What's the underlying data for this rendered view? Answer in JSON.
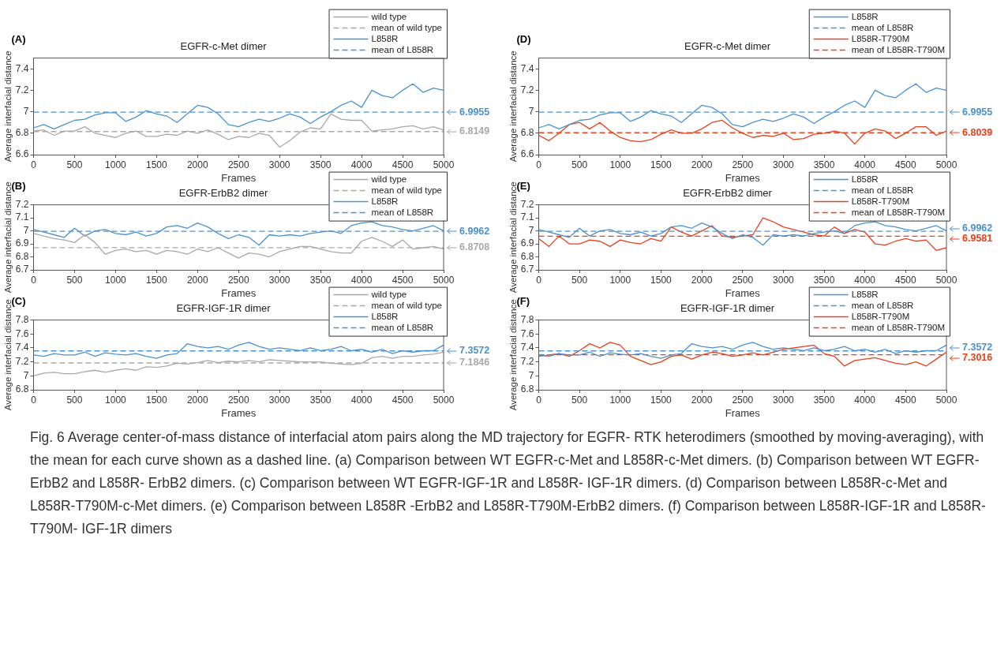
{
  "chart_data": [
    {
      "type": "line",
      "title": "EGFR-c-Met dimer",
      "xlabel": "Frames",
      "ylabel": "Average interfacial distance",
      "xlim": [
        0,
        5000
      ],
      "xticks": [
        0,
        500,
        1000,
        1500,
        2000,
        2500,
        3000,
        3500,
        4000,
        4500,
        5000
      ],
      "ylim": [
        6.6,
        7.5
      ],
      "yticks": [
        6.6,
        6.8,
        7,
        7.2,
        7.4
      ],
      "grid": false,
      "legend": "top right",
      "marker": "none",
      "x": [
        0,
        125,
        250,
        375,
        500,
        625,
        750,
        875,
        1000,
        1125,
        1250,
        1375,
        1500,
        1625,
        1750,
        1875,
        2000,
        2125,
        2250,
        2375,
        2500,
        2625,
        2750,
        2875,
        3000,
        3125,
        3250,
        3375,
        3500,
        3625,
        3750,
        3875,
        4000,
        4125,
        4250,
        4375,
        4500,
        4625,
        4750,
        4875,
        5000
      ],
      "series": [
        {
          "name": "wild type",
          "color": "#a9a9a9",
          "values": [
            6.82,
            6.83,
            6.78,
            6.82,
            6.82,
            6.86,
            6.8,
            6.78,
            6.76,
            6.8,
            6.82,
            6.77,
            6.77,
            6.79,
            6.78,
            6.82,
            6.8,
            6.83,
            6.79,
            6.74,
            6.77,
            6.76,
            6.8,
            6.78,
            6.67,
            6.73,
            6.81,
            6.85,
            6.84,
            6.98,
            6.93,
            6.92,
            6.92,
            6.82,
            6.83,
            6.84,
            6.86,
            6.87,
            6.84,
            6.86,
            6.83
          ]
        },
        {
          "name": "mean of wild type",
          "color": "#a9a9a9",
          "line_style": "dashed",
          "values": [
            6.8149,
            6.8149,
            6.8149,
            6.8149,
            6.8149,
            6.8149,
            6.8149,
            6.8149,
            6.8149,
            6.8149,
            6.8149,
            6.8149,
            6.8149,
            6.8149,
            6.8149,
            6.8149,
            6.8149,
            6.8149,
            6.8149,
            6.8149,
            6.8149,
            6.8149,
            6.8149,
            6.8149,
            6.8149,
            6.8149,
            6.8149,
            6.8149,
            6.8149,
            6.8149,
            6.8149,
            6.8149,
            6.8149,
            6.8149,
            6.8149,
            6.8149,
            6.8149,
            6.8149,
            6.8149,
            6.8149,
            6.8149
          ]
        },
        {
          "name": "L858R",
          "color": "#4a92d2",
          "values": [
            6.85,
            6.88,
            6.84,
            6.88,
            6.92,
            6.93,
            6.97,
            6.99,
            6.99,
            6.91,
            6.95,
            7.01,
            6.98,
            6.96,
            6.9,
            6.98,
            7.06,
            7.04,
            6.98,
            6.88,
            6.86,
            6.9,
            6.93,
            6.91,
            6.94,
            6.98,
            6.95,
            6.89,
            6.95,
            7,
            7.06,
            7.1,
            7.04,
            7.2,
            7.15,
            7.13,
            7.2,
            7.26,
            7.18,
            7.22,
            7.2
          ]
        },
        {
          "name": "mean of L858R",
          "color": "#4a92d2",
          "line_style": "dashed",
          "values": [
            6.9955,
            6.9955,
            6.9955,
            6.9955,
            6.9955,
            6.9955,
            6.9955,
            6.9955,
            6.9955,
            6.9955,
            6.9955,
            6.9955,
            6.9955,
            6.9955,
            6.9955,
            6.9955,
            6.9955,
            6.9955,
            6.9955,
            6.9955,
            6.9955,
            6.9955,
            6.9955,
            6.9955,
            6.9955,
            6.9955,
            6.9955,
            6.9955,
            6.9955,
            6.9955,
            6.9955,
            6.9955,
            6.9955,
            6.9955,
            6.9955,
            6.9955,
            6.9955,
            6.9955,
            6.9955,
            6.9955,
            6.9955
          ]
        }
      ],
      "annotations": [
        "(A)",
        "6.8149",
        "6.9955"
      ]
    },
    {
      "type": "line",
      "title": "EGFR-ErbB2 dimer",
      "xlabel": "Frames",
      "ylabel": "Average interfacial distance",
      "xlim": [
        0,
        5000
      ],
      "xticks": [
        0,
        500,
        1000,
        1500,
        2000,
        2500,
        3000,
        3500,
        4000,
        4500,
        5000
      ],
      "ylim": [
        6.7,
        7.2
      ],
      "yticks": [
        6.7,
        6.8,
        6.9,
        7,
        7.1,
        7.2
      ],
      "grid": false,
      "legend": "top right",
      "marker": "none",
      "x": [
        0,
        125,
        250,
        375,
        500,
        625,
        750,
        875,
        1000,
        1125,
        1250,
        1375,
        1500,
        1625,
        1750,
        1875,
        2000,
        2125,
        2250,
        2375,
        2500,
        2625,
        2750,
        2875,
        3000,
        3125,
        3250,
        3375,
        3500,
        3625,
        3750,
        3875,
        4000,
        4125,
        4250,
        4375,
        4500,
        4625,
        4750,
        4875,
        5000
      ],
      "series": [
        {
          "name": "wild type",
          "color": "#a9a9a9",
          "values": [
            6.98,
            6.96,
            6.94,
            6.93,
            6.91,
            6.97,
            6.91,
            6.82,
            6.85,
            6.86,
            6.84,
            6.85,
            6.82,
            6.85,
            6.84,
            6.82,
            6.86,
            6.84,
            6.87,
            6.83,
            6.79,
            6.83,
            6.82,
            6.8,
            6.84,
            6.86,
            6.88,
            6.88,
            6.86,
            6.84,
            6.83,
            6.83,
            6.92,
            6.95,
            6.92,
            6.88,
            6.93,
            6.86,
            6.87,
            6.88,
            6.86
          ]
        },
        {
          "name": "mean of wild type",
          "color": "#a9a9a9",
          "line_style": "dashed",
          "values": [
            6.8708,
            6.8708,
            6.8708,
            6.8708,
            6.8708,
            6.8708,
            6.8708,
            6.8708,
            6.8708,
            6.8708,
            6.8708,
            6.8708,
            6.8708,
            6.8708,
            6.8708,
            6.8708,
            6.8708,
            6.8708,
            6.8708,
            6.8708,
            6.8708,
            6.8708,
            6.8708,
            6.8708,
            6.8708,
            6.8708,
            6.8708,
            6.8708,
            6.8708,
            6.8708,
            6.8708,
            6.8708,
            6.8708,
            6.8708,
            6.8708,
            6.8708,
            6.8708,
            6.8708,
            6.8708,
            6.8708,
            6.8708
          ]
        },
        {
          "name": "L858R",
          "color": "#4a92d2",
          "values": [
            7.01,
            6.99,
            6.97,
            6.95,
            7.02,
            6.96,
            7,
            7.01,
            6.98,
            6.97,
            6.99,
            6.96,
            6.98,
            7.03,
            7.04,
            7.02,
            7.06,
            7.03,
            6.98,
            6.94,
            6.97,
            6.95,
            6.89,
            6.97,
            6.96,
            6.97,
            6.96,
            6.98,
            6.99,
            7,
            6.98,
            7.04,
            7.06,
            7.07,
            7.04,
            7.03,
            7.01,
            7,
            7.02,
            7.04,
            7
          ]
        },
        {
          "name": "mean of L858R",
          "color": "#4a92d2",
          "line_style": "dashed",
          "values": [
            6.9962,
            6.9962,
            6.9962,
            6.9962,
            6.9962,
            6.9962,
            6.9962,
            6.9962,
            6.9962,
            6.9962,
            6.9962,
            6.9962,
            6.9962,
            6.9962,
            6.9962,
            6.9962,
            6.9962,
            6.9962,
            6.9962,
            6.9962,
            6.9962,
            6.9962,
            6.9962,
            6.9962,
            6.9962,
            6.9962,
            6.9962,
            6.9962,
            6.9962,
            6.9962,
            6.9962,
            6.9962,
            6.9962,
            6.9962,
            6.9962,
            6.9962,
            6.9962,
            6.9962,
            6.9962,
            6.9962,
            6.9962
          ]
        }
      ],
      "annotations": [
        "(B)",
        "6.8708",
        "6.9962"
      ]
    },
    {
      "type": "line",
      "title": "EGFR-IGF-1R dimer",
      "xlabel": "Frames",
      "ylabel": "Average interfacial distance",
      "xlim": [
        0,
        5000
      ],
      "xticks": [
        0,
        500,
        1000,
        1500,
        2000,
        2500,
        3000,
        3500,
        4000,
        4500,
        5000
      ],
      "ylim": [
        6.8,
        7.8
      ],
      "yticks": [
        6.8,
        7,
        7.2,
        7.4,
        7.6,
        7.8
      ],
      "grid": false,
      "legend": "top right",
      "marker": "none",
      "x": [
        0,
        125,
        250,
        375,
        500,
        625,
        750,
        875,
        1000,
        1125,
        1250,
        1375,
        1500,
        1625,
        1750,
        1875,
        2000,
        2125,
        2250,
        2375,
        2500,
        2625,
        2750,
        2875,
        3000,
        3125,
        3250,
        3375,
        3500,
        3625,
        3750,
        3875,
        4000,
        4125,
        4250,
        4375,
        4500,
        4625,
        4750,
        4875,
        5000
      ],
      "series": [
        {
          "name": "wild type",
          "color": "#a9a9a9",
          "values": [
            7,
            7.04,
            7.05,
            7.03,
            7.03,
            7.06,
            7.08,
            7.05,
            7.08,
            7.1,
            7.08,
            7.13,
            7.12,
            7.14,
            7.18,
            7.17,
            7.19,
            7.22,
            7.19,
            7.21,
            7.2,
            7.22,
            7.2,
            7.23,
            7.22,
            7.21,
            7.2,
            7.2,
            7.2,
            7.18,
            7.17,
            7.16,
            7.18,
            7.26,
            7.28,
            7.25,
            7.28,
            7.28,
            7.3,
            7.31,
            7.34
          ]
        },
        {
          "name": "mean of wild type",
          "color": "#a9a9a9",
          "line_style": "dashed",
          "values": [
            7.1846,
            7.1846,
            7.1846,
            7.1846,
            7.1846,
            7.1846,
            7.1846,
            7.1846,
            7.1846,
            7.1846,
            7.1846,
            7.1846,
            7.1846,
            7.1846,
            7.1846,
            7.1846,
            7.1846,
            7.1846,
            7.1846,
            7.1846,
            7.1846,
            7.1846,
            7.1846,
            7.1846,
            7.1846,
            7.1846,
            7.1846,
            7.1846,
            7.1846,
            7.1846,
            7.1846,
            7.1846,
            7.1846,
            7.1846,
            7.1846,
            7.1846,
            7.1846,
            7.1846,
            7.1846,
            7.1846,
            7.1846
          ]
        },
        {
          "name": "L858R",
          "color": "#4a92d2",
          "values": [
            7.3,
            7.28,
            7.32,
            7.3,
            7.3,
            7.34,
            7.28,
            7.33,
            7.31,
            7.3,
            7.32,
            7.28,
            7.25,
            7.3,
            7.32,
            7.46,
            7.42,
            7.4,
            7.42,
            7.38,
            7.44,
            7.48,
            7.42,
            7.38,
            7.4,
            7.38,
            7.36,
            7.4,
            7.36,
            7.38,
            7.42,
            7.36,
            7.38,
            7.34,
            7.38,
            7.32,
            7.36,
            7.34,
            7.36,
            7.36,
            7.44
          ]
        },
        {
          "name": "mean of L858R",
          "color": "#4a92d2",
          "line_style": "dashed",
          "values": [
            7.3572,
            7.3572,
            7.3572,
            7.3572,
            7.3572,
            7.3572,
            7.3572,
            7.3572,
            7.3572,
            7.3572,
            7.3572,
            7.3572,
            7.3572,
            7.3572,
            7.3572,
            7.3572,
            7.3572,
            7.3572,
            7.3572,
            7.3572,
            7.3572,
            7.3572,
            7.3572,
            7.3572,
            7.3572,
            7.3572,
            7.3572,
            7.3572,
            7.3572,
            7.3572,
            7.3572,
            7.3572,
            7.3572,
            7.3572,
            7.3572,
            7.3572,
            7.3572,
            7.3572,
            7.3572,
            7.3572,
            7.3572
          ]
        }
      ],
      "annotations": [
        "(C)",
        "7.1846",
        "7.3572"
      ]
    },
    {
      "type": "line",
      "title": "EGFR-c-Met dimer",
      "xlabel": "Frames",
      "ylabel": "Average interfacial distance",
      "xlim": [
        0,
        5000
      ],
      "xticks": [
        0,
        500,
        1000,
        1500,
        2000,
        2500,
        3000,
        3500,
        4000,
        4500,
        5000
      ],
      "ylim": [
        6.6,
        7.5
      ],
      "yticks": [
        6.6,
        6.8,
        7,
        7.2,
        7.4
      ],
      "grid": false,
      "legend": "top right",
      "marker": "none",
      "x": [
        0,
        125,
        250,
        375,
        500,
        625,
        750,
        875,
        1000,
        1125,
        1250,
        1375,
        1500,
        1625,
        1750,
        1875,
        2000,
        2125,
        2250,
        2375,
        2500,
        2625,
        2750,
        2875,
        3000,
        3125,
        3250,
        3375,
        3500,
        3625,
        3750,
        3875,
        4000,
        4125,
        4250,
        4375,
        4500,
        4625,
        4750,
        4875,
        5000
      ],
      "series": [
        {
          "name": "L858R",
          "color": "#4a92d2",
          "values": [
            6.85,
            6.88,
            6.84,
            6.88,
            6.92,
            6.93,
            6.97,
            6.99,
            6.99,
            6.91,
            6.95,
            7.01,
            6.98,
            6.96,
            6.9,
            6.98,
            7.06,
            7.04,
            6.98,
            6.88,
            6.86,
            6.9,
            6.93,
            6.91,
            6.94,
            6.98,
            6.95,
            6.89,
            6.95,
            7,
            7.06,
            7.1,
            7.04,
            7.2,
            7.15,
            7.13,
            7.2,
            7.26,
            7.18,
            7.22,
            7.2
          ]
        },
        {
          "name": "mean of L858R",
          "color": "#4a92d2",
          "line_style": "dashed",
          "values": [
            6.9955,
            6.9955,
            6.9955,
            6.9955,
            6.9955,
            6.9955,
            6.9955,
            6.9955,
            6.9955,
            6.9955,
            6.9955,
            6.9955,
            6.9955,
            6.9955,
            6.9955,
            6.9955,
            6.9955,
            6.9955,
            6.9955,
            6.9955,
            6.9955,
            6.9955,
            6.9955,
            6.9955,
            6.9955,
            6.9955,
            6.9955,
            6.9955,
            6.9955,
            6.9955,
            6.9955,
            6.9955,
            6.9955,
            6.9955,
            6.9955,
            6.9955,
            6.9955,
            6.9955,
            6.9955,
            6.9955,
            6.9955
          ]
        },
        {
          "name": "L858R-T790M",
          "color": "#e8411c",
          "values": [
            6.78,
            6.73,
            6.8,
            6.88,
            6.9,
            6.84,
            6.9,
            6.82,
            6.76,
            6.73,
            6.72,
            6.74,
            6.79,
            6.83,
            6.8,
            6.8,
            6.84,
            6.9,
            6.92,
            6.85,
            6.8,
            6.76,
            6.78,
            6.77,
            6.8,
            6.74,
            6.75,
            6.79,
            6.8,
            6.82,
            6.8,
            6.7,
            6.8,
            6.84,
            6.82,
            6.75,
            6.8,
            6.86,
            6.86,
            6.78,
            6.82
          ]
        },
        {
          "name": "mean of L858R-T790M",
          "color": "#e8411c",
          "line_style": "dashed",
          "values": [
            6.8039,
            6.8039,
            6.8039,
            6.8039,
            6.8039,
            6.8039,
            6.8039,
            6.8039,
            6.8039,
            6.8039,
            6.8039,
            6.8039,
            6.8039,
            6.8039,
            6.8039,
            6.8039,
            6.8039,
            6.8039,
            6.8039,
            6.8039,
            6.8039,
            6.8039,
            6.8039,
            6.8039,
            6.8039,
            6.8039,
            6.8039,
            6.8039,
            6.8039,
            6.8039,
            6.8039,
            6.8039,
            6.8039,
            6.8039,
            6.8039,
            6.8039,
            6.8039,
            6.8039,
            6.8039,
            6.8039,
            6.8039
          ]
        }
      ],
      "annotations": [
        "(D)",
        "6.9955",
        "6.8039"
      ]
    },
    {
      "type": "line",
      "title": "EGFR-ErbB2 dimer",
      "xlabel": "Frames",
      "ylabel": "Average interfacial distance",
      "xlim": [
        0,
        5000
      ],
      "xticks": [
        0,
        500,
        1000,
        1500,
        2000,
        2500,
        3000,
        3500,
        4000,
        4500,
        5000
      ],
      "ylim": [
        6.7,
        7.2
      ],
      "yticks": [
        6.7,
        6.8,
        6.9,
        7,
        7.1,
        7.2
      ],
      "grid": false,
      "legend": "top right",
      "marker": "none",
      "x": [
        0,
        125,
        250,
        375,
        500,
        625,
        750,
        875,
        1000,
        1125,
        1250,
        1375,
        1500,
        1625,
        1750,
        1875,
        2000,
        2125,
        2250,
        2375,
        2500,
        2625,
        2750,
        2875,
        3000,
        3125,
        3250,
        3375,
        3500,
        3625,
        3750,
        3875,
        4000,
        4125,
        4250,
        4375,
        4500,
        4625,
        4750,
        4875,
        5000
      ],
      "series": [
        {
          "name": "L858R",
          "color": "#4a92d2",
          "values": [
            7.01,
            6.99,
            6.97,
            6.95,
            7.02,
            6.96,
            7,
            7.01,
            6.98,
            6.97,
            6.99,
            6.96,
            6.98,
            7.03,
            7.04,
            7.02,
            7.06,
            7.03,
            6.98,
            6.94,
            6.97,
            6.95,
            6.89,
            6.97,
            6.96,
            6.97,
            6.96,
            6.98,
            6.99,
            7,
            6.98,
            7.04,
            7.06,
            7.07,
            7.04,
            7.03,
            7.01,
            7,
            7.02,
            7.04,
            7
          ]
        },
        {
          "name": "mean of L858R",
          "color": "#4a92d2",
          "line_style": "dashed",
          "values": [
            6.9962,
            6.9962,
            6.9962,
            6.9962,
            6.9962,
            6.9962,
            6.9962,
            6.9962,
            6.9962,
            6.9962,
            6.9962,
            6.9962,
            6.9962,
            6.9962,
            6.9962,
            6.9962,
            6.9962,
            6.9962,
            6.9962,
            6.9962,
            6.9962,
            6.9962,
            6.9962,
            6.9962,
            6.9962,
            6.9962,
            6.9962,
            6.9962,
            6.9962,
            6.9962,
            6.9962,
            6.9962,
            6.9962,
            6.9962,
            6.9962,
            6.9962,
            6.9962,
            6.9962,
            6.9962,
            6.9962,
            6.9962
          ]
        },
        {
          "name": "L858R-T790M",
          "color": "#e8411c",
          "values": [
            6.94,
            6.88,
            6.96,
            6.9,
            6.9,
            6.93,
            6.92,
            6.88,
            6.93,
            6.91,
            6.9,
            6.94,
            6.92,
            7.03,
            6.99,
            6.96,
            7,
            7.04,
            6.96,
            6.95,
            6.96,
            6.97,
            7.1,
            7.07,
            7.03,
            7.01,
            6.99,
            6.97,
            6.96,
            7.03,
            6.98,
            7.01,
            6.99,
            6.9,
            6.89,
            6.92,
            6.94,
            6.92,
            6.93,
            6.85,
            6.87
          ]
        },
        {
          "name": "mean of L858R-T790M",
          "color": "#e8411c",
          "line_style": "dashed",
          "values": [
            6.9581,
            6.9581,
            6.9581,
            6.9581,
            6.9581,
            6.9581,
            6.9581,
            6.9581,
            6.9581,
            6.9581,
            6.9581,
            6.9581,
            6.9581,
            6.9581,
            6.9581,
            6.9581,
            6.9581,
            6.9581,
            6.9581,
            6.9581,
            6.9581,
            6.9581,
            6.9581,
            6.9581,
            6.9581,
            6.9581,
            6.9581,
            6.9581,
            6.9581,
            6.9581,
            6.9581,
            6.9581,
            6.9581,
            6.9581,
            6.9581,
            6.9581,
            6.9581,
            6.9581,
            6.9581,
            6.9581,
            6.9581
          ]
        }
      ],
      "annotations": [
        "(E)",
        "6.9962",
        "6.9581"
      ]
    },
    {
      "type": "line",
      "title": "EGFR-IGF-1R dimer",
      "xlabel": "Frames",
      "ylabel": "Average interfacial distance",
      "xlim": [
        0,
        5000
      ],
      "xticks": [
        0,
        500,
        1000,
        1500,
        2000,
        2500,
        3000,
        3500,
        4000,
        4500,
        5000
      ],
      "ylim": [
        6.8,
        7.8
      ],
      "yticks": [
        6.8,
        7,
        7.2,
        7.4,
        7.6,
        7.8
      ],
      "grid": false,
      "legend": "top right",
      "marker": "none",
      "x": [
        0,
        125,
        250,
        375,
        500,
        625,
        750,
        875,
        1000,
        1125,
        1250,
        1375,
        1500,
        1625,
        1750,
        1875,
        2000,
        2125,
        2250,
        2375,
        2500,
        2625,
        2750,
        2875,
        3000,
        3125,
        3250,
        3375,
        3500,
        3625,
        3750,
        3875,
        4000,
        4125,
        4250,
        4375,
        4500,
        4625,
        4750,
        4875,
        5000
      ],
      "series": [
        {
          "name": "L858R",
          "color": "#4a92d2",
          "values": [
            7.3,
            7.28,
            7.32,
            7.3,
            7.3,
            7.34,
            7.28,
            7.33,
            7.31,
            7.3,
            7.32,
            7.28,
            7.25,
            7.3,
            7.32,
            7.46,
            7.42,
            7.4,
            7.42,
            7.38,
            7.44,
            7.48,
            7.42,
            7.38,
            7.4,
            7.38,
            7.36,
            7.4,
            7.36,
            7.38,
            7.42,
            7.36,
            7.38,
            7.34,
            7.38,
            7.32,
            7.36,
            7.34,
            7.36,
            7.36,
            7.44
          ]
        },
        {
          "name": "mean of L858R",
          "color": "#4a92d2",
          "line_style": "dashed",
          "values": [
            7.3572,
            7.3572,
            7.3572,
            7.3572,
            7.3572,
            7.3572,
            7.3572,
            7.3572,
            7.3572,
            7.3572,
            7.3572,
            7.3572,
            7.3572,
            7.3572,
            7.3572,
            7.3572,
            7.3572,
            7.3572,
            7.3572,
            7.3572,
            7.3572,
            7.3572,
            7.3572,
            7.3572,
            7.3572,
            7.3572,
            7.3572,
            7.3572,
            7.3572,
            7.3572,
            7.3572,
            7.3572,
            7.3572,
            7.3572,
            7.3572,
            7.3572,
            7.3572,
            7.3572,
            7.3572,
            7.3572,
            7.3572
          ]
        },
        {
          "name": "L858R-T790M",
          "color": "#e8411c",
          "values": [
            7.28,
            7.3,
            7.32,
            7.28,
            7.36,
            7.46,
            7.4,
            7.48,
            7.44,
            7.28,
            7.22,
            7.16,
            7.2,
            7.28,
            7.3,
            7.24,
            7.3,
            7.34,
            7.32,
            7.28,
            7.3,
            7.33,
            7.3,
            7.34,
            7.38,
            7.4,
            7.42,
            7.44,
            7.32,
            7.28,
            7.14,
            7.22,
            7.24,
            7.26,
            7.22,
            7.18,
            7.16,
            7.2,
            7.14,
            7.24,
            7.34
          ]
        },
        {
          "name": "mean of L858R-T790M",
          "color": "#e8411c",
          "line_style": "dashed",
          "values": [
            7.3016,
            7.3016,
            7.3016,
            7.3016,
            7.3016,
            7.3016,
            7.3016,
            7.3016,
            7.3016,
            7.3016,
            7.3016,
            7.3016,
            7.3016,
            7.3016,
            7.3016,
            7.3016,
            7.3016,
            7.3016,
            7.3016,
            7.3016,
            7.3016,
            7.3016,
            7.3016,
            7.3016,
            7.3016,
            7.3016,
            7.3016,
            7.3016,
            7.3016,
            7.3016,
            7.3016,
            7.3016,
            7.3016,
            7.3016,
            7.3016,
            7.3016,
            7.3016,
            7.3016,
            7.3016,
            7.3016,
            7.3016
          ]
        }
      ],
      "annotations": [
        "(F)",
        "7.3572",
        "7.3016",
        "Fig. 6 Average center-of-mass distance of interfacial atom pairs along the MD trajectory for EGFR- RTK heterodimers (smoothed by moving-averaging), with the mean for each curve shown as a dashed line. (a) Comparison between WT EGFR-c-Met and L858R-c-Met dimers. (b) Comparison between WT EGFR-ErbB2 and L858R- ErbB2 dimers. (c) Comparison between WT EGFR-IGF-1R and L858R- IGF-1R dimers. (d) Comparison between L858R-c-Met and L858R-T790M-c-Met dimers. (e) Comparison between L858R -ErbB2 and L858R-T790M-ErbB2 dimers. (f) Comparison between L858R-IGF-1R and L858R-T790M- IGF-1R dimers"
      ]
    }
  ]
}
